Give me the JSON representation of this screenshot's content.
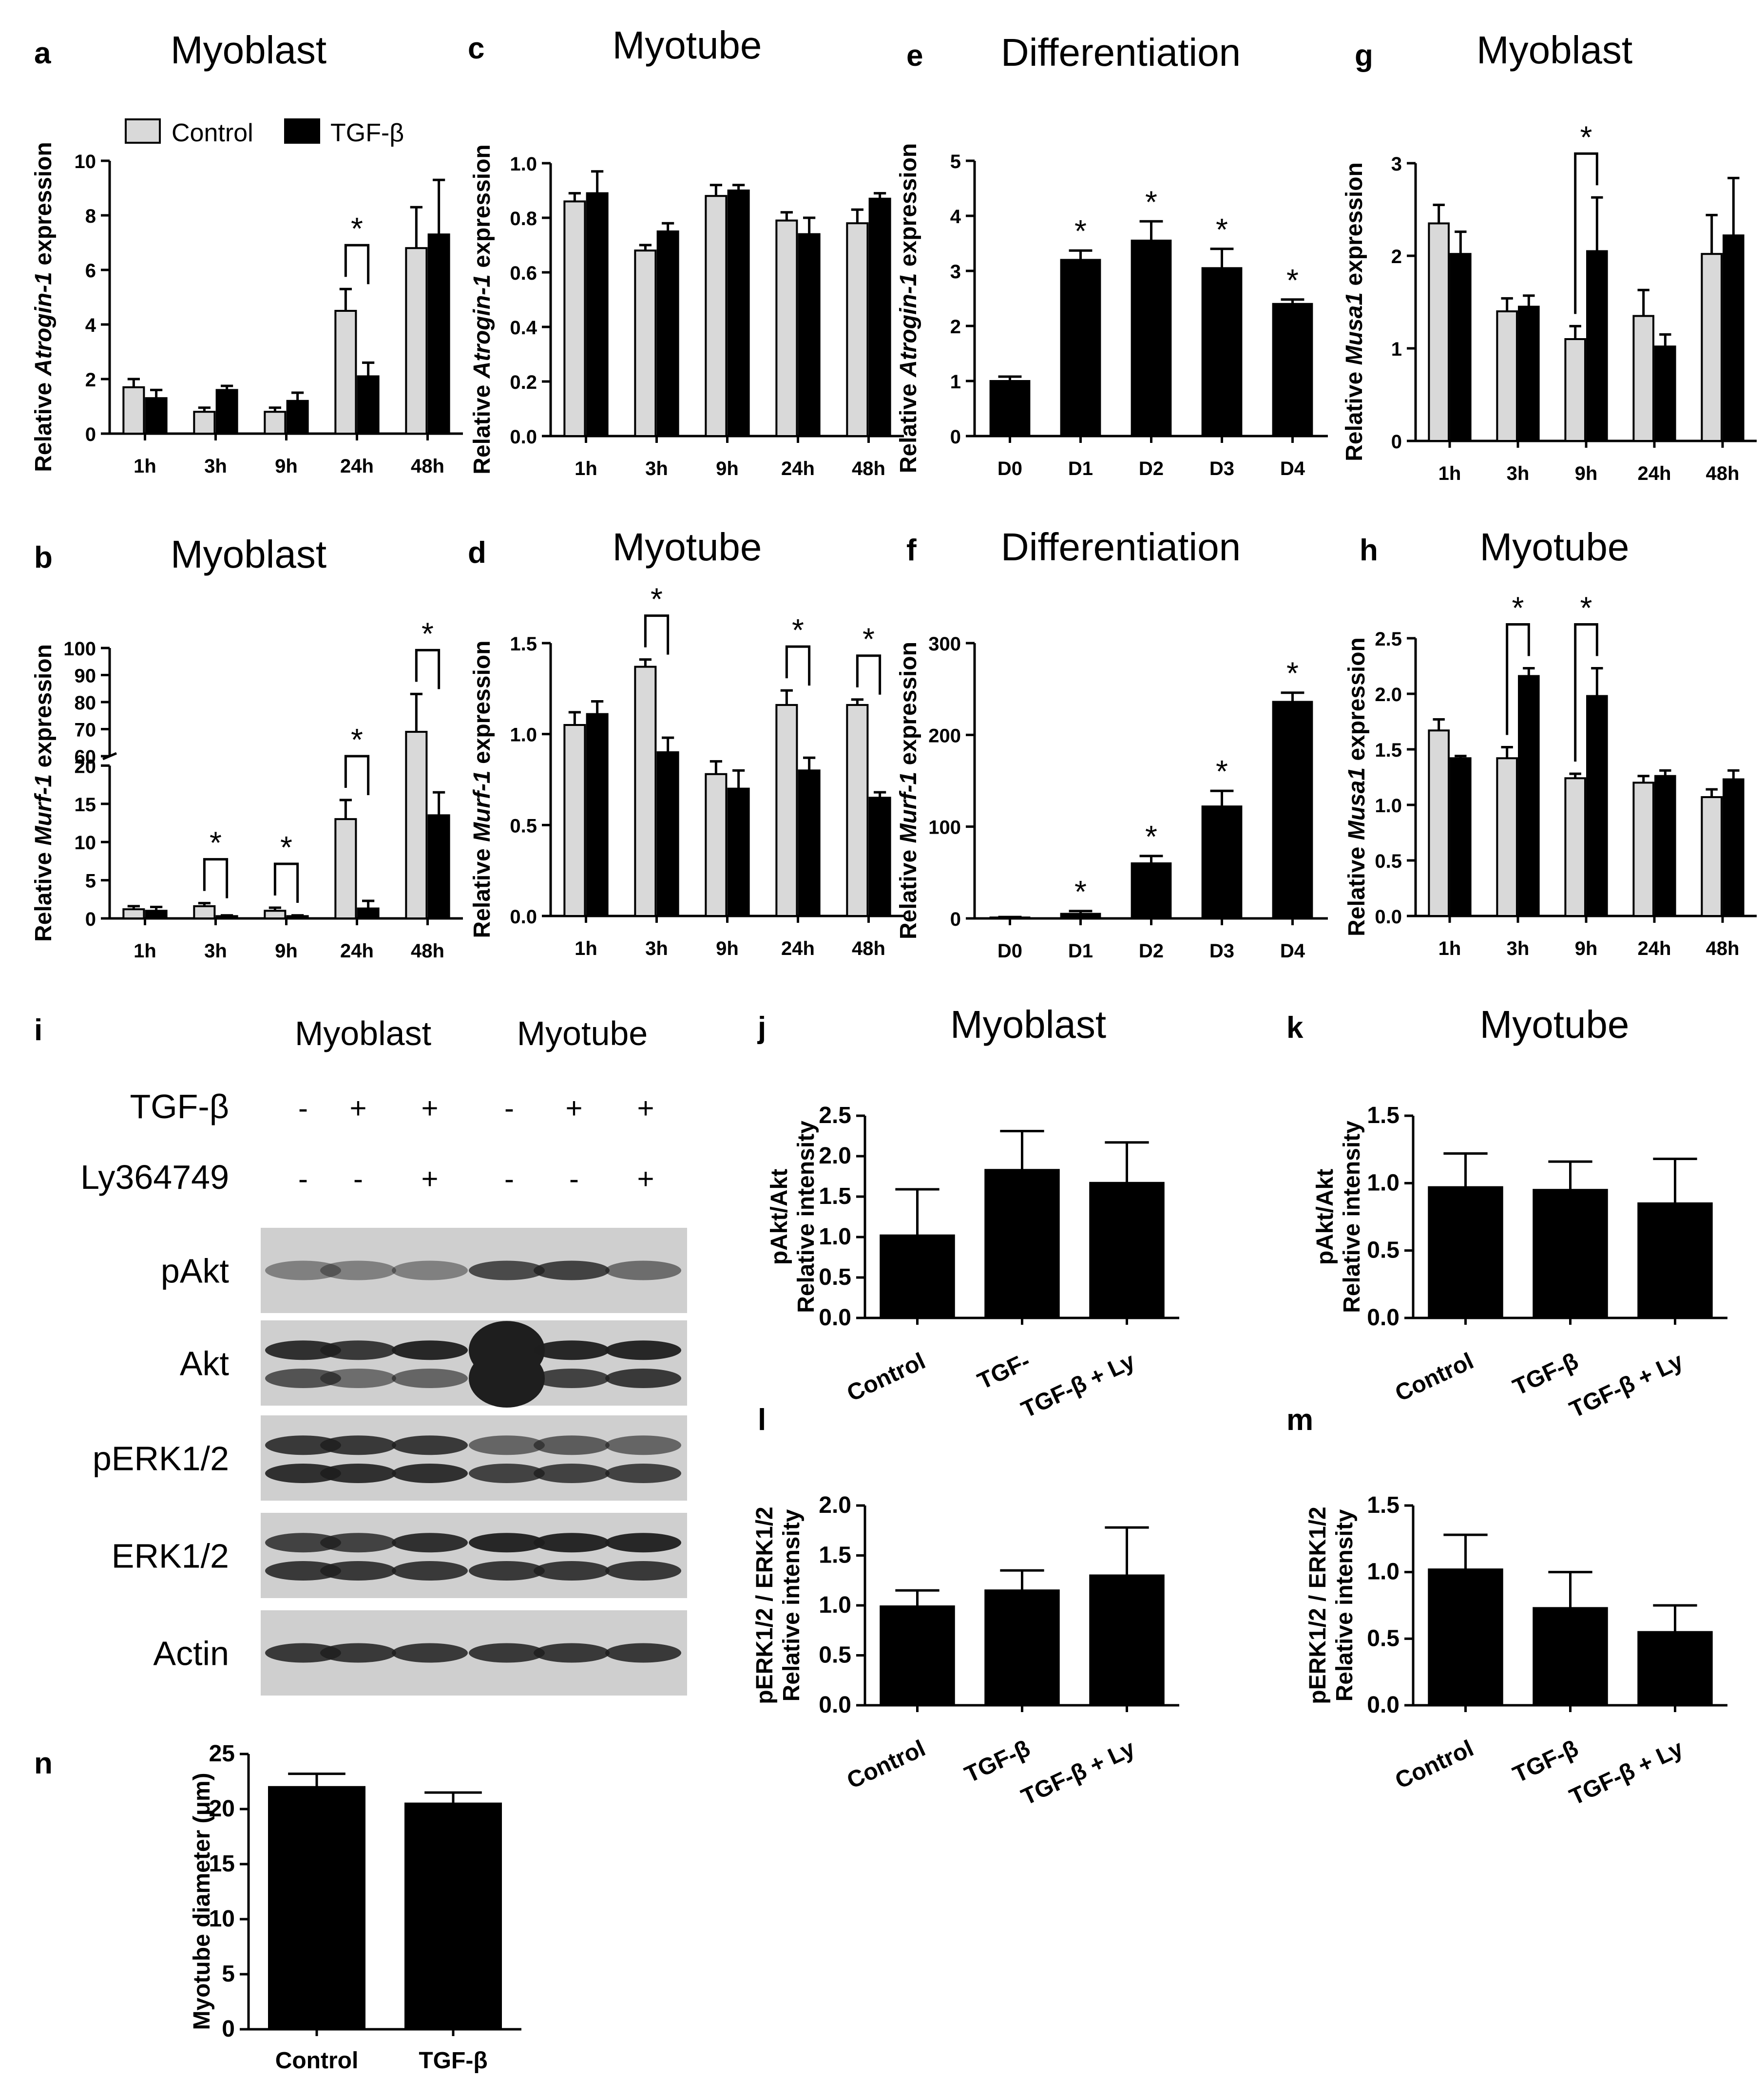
{
  "colors": {
    "control": "#d9d9d9",
    "treated": "#000000",
    "axis": "#000000",
    "blot_bg": "#cfcfcf",
    "band": "#1e1e1e"
  },
  "legend": {
    "control": "Control",
    "treated": "TGF-β"
  },
  "chart_data": [
    {
      "id": "a",
      "panel": "a",
      "type": "bar",
      "title": "Myoblast",
      "ylabel": "Relative Atrogin-1 expression",
      "ylabel_parts": [
        "Relative ",
        "Atrogin-1",
        " expression"
      ],
      "categories": [
        "1h",
        "3h",
        "9h",
        "24h",
        "48h"
      ],
      "ylim": [
        0,
        10
      ],
      "yticks": [
        0,
        2,
        4,
        6,
        8,
        10
      ],
      "series": [
        {
          "name": "Control",
          "values": [
            1.7,
            0.8,
            0.8,
            4.5,
            6.8
          ],
          "errors": [
            0.3,
            0.15,
            0.15,
            0.8,
            1.5
          ]
        },
        {
          "name": "TGF-β",
          "values": [
            1.3,
            1.6,
            1.2,
            2.1,
            7.3
          ],
          "errors": [
            0.3,
            0.15,
            0.3,
            0.5,
            2.0
          ]
        }
      ],
      "sig": [
        {
          "cat": 3,
          "label": "*"
        }
      ]
    },
    {
      "id": "b",
      "panel": "b",
      "type": "bar",
      "title": "Myoblast",
      "ylabel": "Relative Murf-1 expression",
      "ylabel_parts": [
        "Relative ",
        "Murf-1",
        " expression"
      ],
      "categories": [
        "1h",
        "3h",
        "9h",
        "24h",
        "48h"
      ],
      "ylim": [
        0,
        100
      ],
      "broken_axis": {
        "low": [
          0,
          20
        ],
        "high": [
          60,
          100
        ]
      },
      "yticks": [
        0,
        5,
        10,
        15,
        20,
        60,
        70,
        80,
        90,
        100
      ],
      "series": [
        {
          "name": "Control",
          "values": [
            1.2,
            1.6,
            1.0,
            13,
            69
          ],
          "errors": [
            0.4,
            0.4,
            0.4,
            2.5,
            14
          ]
        },
        {
          "name": "TGF-β",
          "values": [
            1.0,
            0.3,
            0.3,
            1.3,
            13.5
          ],
          "errors": [
            0.5,
            0.1,
            0.1,
            1.0,
            3
          ]
        }
      ],
      "sig": [
        {
          "cat": 1,
          "label": "*"
        },
        {
          "cat": 2,
          "label": "*"
        },
        {
          "cat": 3,
          "label": "*"
        },
        {
          "cat": 4,
          "label": "*"
        }
      ]
    },
    {
      "id": "c",
      "panel": "c",
      "type": "bar",
      "title": "Myotube",
      "ylabel": "Relative Atrogin-1 expression",
      "ylabel_parts": [
        "Relative ",
        "Atrogin-1",
        " expression"
      ],
      "categories": [
        "1h",
        "3h",
        "9h",
        "24h",
        "48h"
      ],
      "ylim": [
        0,
        1.0
      ],
      "yticks": [
        0.0,
        0.2,
        0.4,
        0.6,
        0.8,
        1.0
      ],
      "series": [
        {
          "name": "Control",
          "values": [
            0.86,
            0.68,
            0.88,
            0.79,
            0.78
          ],
          "errors": [
            0.03,
            0.02,
            0.04,
            0.03,
            0.05
          ]
        },
        {
          "name": "TGF-β",
          "values": [
            0.89,
            0.75,
            0.9,
            0.74,
            0.87
          ],
          "errors": [
            0.08,
            0.03,
            0.02,
            0.06,
            0.02
          ]
        }
      ],
      "sig": []
    },
    {
      "id": "d",
      "panel": "d",
      "type": "bar",
      "title": "Myotube",
      "ylabel": "Relative Murf-1 expression",
      "ylabel_parts": [
        "Relative ",
        "Murf-1",
        " expression"
      ],
      "categories": [
        "1h",
        "3h",
        "9h",
        "24h",
        "48h"
      ],
      "ylim": [
        0,
        1.5
      ],
      "yticks": [
        0.0,
        0.5,
        1.0,
        1.5
      ],
      "series": [
        {
          "name": "Control",
          "values": [
            1.05,
            1.37,
            0.78,
            1.16,
            1.16
          ],
          "errors": [
            0.07,
            0.04,
            0.07,
            0.08,
            0.03
          ]
        },
        {
          "name": "TGF-β",
          "values": [
            1.11,
            0.9,
            0.7,
            0.8,
            0.65
          ],
          "errors": [
            0.07,
            0.08,
            0.1,
            0.07,
            0.03
          ]
        }
      ],
      "sig": [
        {
          "cat": 1,
          "label": "*"
        },
        {
          "cat": 3,
          "label": "*"
        },
        {
          "cat": 4,
          "label": "*"
        }
      ]
    },
    {
      "id": "e",
      "panel": "e",
      "type": "bar",
      "title": "Differentiation",
      "ylabel": "Relative Atrogin-1 expression",
      "ylabel_parts": [
        "Relative ",
        "Atrogin-1",
        " expression"
      ],
      "categories": [
        "D0",
        "D1",
        "D2",
        "D3",
        "D4"
      ],
      "ylim": [
        0,
        5
      ],
      "yticks": [
        0,
        1,
        2,
        3,
        4,
        5
      ],
      "series": [
        {
          "name": "Differentiation",
          "values": [
            1.0,
            3.2,
            3.55,
            3.05,
            2.4
          ],
          "errors": [
            0.08,
            0.17,
            0.35,
            0.35,
            0.08
          ]
        }
      ],
      "sig": [
        {
          "cat": 1,
          "label": "*"
        },
        {
          "cat": 2,
          "label": "*"
        },
        {
          "cat": 3,
          "label": "*"
        },
        {
          "cat": 4,
          "label": "*"
        }
      ]
    },
    {
      "id": "f",
      "panel": "f",
      "type": "bar",
      "title": "Differentiation",
      "ylabel": "Relative Murf-1 expression",
      "ylabel_parts": [
        "Relative ",
        "Murf-1",
        " expression"
      ],
      "categories": [
        "D0",
        "D1",
        "D2",
        "D3",
        "D4"
      ],
      "ylim": [
        0,
        300
      ],
      "yticks": [
        0,
        100,
        200,
        300
      ],
      "series": [
        {
          "name": "Differentiation",
          "values": [
            1,
            5,
            60,
            122,
            236
          ],
          "errors": [
            0.5,
            3,
            8,
            17,
            10
          ]
        }
      ],
      "sig": [
        {
          "cat": 1,
          "label": "*"
        },
        {
          "cat": 2,
          "label": "*"
        },
        {
          "cat": 3,
          "label": "*"
        },
        {
          "cat": 4,
          "label": "*"
        }
      ]
    },
    {
      "id": "g",
      "panel": "g",
      "type": "bar",
      "title": "Myoblast",
      "ylabel": "Relative Musa1 expression",
      "ylabel_parts": [
        "Relative ",
        "Musa1",
        " expression"
      ],
      "categories": [
        "1h",
        "3h",
        "9h",
        "24h",
        "48h"
      ],
      "ylim": [
        0,
        3
      ],
      "yticks": [
        0,
        1,
        2,
        3
      ],
      "series": [
        {
          "name": "Control",
          "values": [
            2.35,
            1.4,
            1.1,
            1.35,
            2.02
          ],
          "errors": [
            0.2,
            0.14,
            0.14,
            0.28,
            0.42
          ]
        },
        {
          "name": "TGF-β",
          "values": [
            2.02,
            1.45,
            2.05,
            1.02,
            2.22
          ],
          "errors": [
            0.24,
            0.12,
            0.58,
            0.13,
            0.62
          ]
        }
      ],
      "sig": [
        {
          "cat": 2,
          "label": "*"
        }
      ]
    },
    {
      "id": "h",
      "panel": "h",
      "type": "bar",
      "title": "Myotube",
      "ylabel": "Relative Musa1 expression",
      "ylabel_parts": [
        "Relative ",
        "Musa1",
        " expression"
      ],
      "categories": [
        "1h",
        "3h",
        "9h",
        "24h",
        "48h"
      ],
      "ylim": [
        0,
        2.5
      ],
      "yticks": [
        0.0,
        0.5,
        1.0,
        1.5,
        2.0,
        2.5
      ],
      "series": [
        {
          "name": "Control",
          "values": [
            1.67,
            1.42,
            1.24,
            1.2,
            1.07
          ],
          "errors": [
            0.1,
            0.1,
            0.04,
            0.06,
            0.07
          ]
        },
        {
          "name": "TGF-β",
          "values": [
            1.42,
            2.16,
            1.98,
            1.26,
            1.23
          ],
          "errors": [
            0.02,
            0.07,
            0.25,
            0.05,
            0.08
          ]
        }
      ],
      "sig": [
        {
          "cat": 1,
          "label": "*"
        },
        {
          "cat": 2,
          "label": "*"
        }
      ]
    },
    {
      "id": "j",
      "panel": "j",
      "type": "bar",
      "title": "Myoblast",
      "ylabel_lines": [
        "pAkt/Akt",
        "Relative intensity"
      ],
      "categories": [
        "Control",
        "TGF-",
        "TGF-β + Ly"
      ],
      "ylim": [
        0,
        2.5
      ],
      "yticks": [
        0.0,
        0.5,
        1.0,
        1.5,
        2.0,
        2.5
      ],
      "series": [
        {
          "name": "Relative intensity",
          "values": [
            1.02,
            1.83,
            1.67
          ],
          "errors": [
            0.57,
            0.48,
            0.5
          ]
        }
      ],
      "sig": []
    },
    {
      "id": "k",
      "panel": "k",
      "type": "bar",
      "title": "Myotube",
      "ylabel_lines": [
        "pAkt/Akt",
        "Relative intensity"
      ],
      "categories": [
        "Control",
        "TGF-β",
        "TGF-β + Ly"
      ],
      "ylim": [
        0,
        1.5
      ],
      "yticks": [
        0.0,
        0.5,
        1.0,
        1.5
      ],
      "series": [
        {
          "name": "Relative intensity",
          "values": [
            0.97,
            0.95,
            0.85
          ],
          "errors": [
            0.25,
            0.21,
            0.33
          ]
        }
      ],
      "sig": []
    },
    {
      "id": "l",
      "panel": "l",
      "type": "bar",
      "title": "",
      "ylabel_lines": [
        "pERK1/2 / ERK1/2",
        "Relative intensity"
      ],
      "categories": [
        "Control",
        "TGF-β",
        "TGF-β + Ly"
      ],
      "ylim": [
        0,
        2.0
      ],
      "yticks": [
        0.0,
        0.5,
        1.0,
        1.5,
        2.0
      ],
      "series": [
        {
          "name": "Relative intensity",
          "values": [
            0.99,
            1.15,
            1.3
          ],
          "errors": [
            0.16,
            0.2,
            0.48
          ]
        }
      ],
      "sig": []
    },
    {
      "id": "m",
      "panel": "m",
      "type": "bar",
      "title": "",
      "ylabel_lines": [
        "pERK1/2 / ERK1/2",
        "Relative intensity"
      ],
      "categories": [
        "Control",
        "TGF-β",
        "TGF-β + Ly"
      ],
      "ylim": [
        0,
        1.5
      ],
      "yticks": [
        0.0,
        0.5,
        1.0,
        1.5
      ],
      "series": [
        {
          "name": "Relative intensity",
          "values": [
            1.02,
            0.73,
            0.55
          ],
          "errors": [
            0.26,
            0.27,
            0.2
          ]
        }
      ],
      "sig": []
    },
    {
      "id": "n",
      "panel": "n",
      "type": "bar",
      "title": "",
      "ylabel": "Myotube diameter (μm)",
      "categories": [
        "Control",
        "TGF-β"
      ],
      "ylim": [
        0,
        25
      ],
      "yticks": [
        0,
        5,
        10,
        15,
        20,
        25
      ],
      "series": [
        {
          "name": "Myotube diameter",
          "values": [
            22,
            20.5
          ],
          "errors": [
            1.2,
            1.0
          ]
        }
      ],
      "sig": []
    }
  ],
  "western": {
    "panel": "i",
    "groups": [
      "Myoblast",
      "Myotube"
    ],
    "rows": [
      {
        "label": "TGF-β",
        "signs": [
          "-",
          "+",
          "+",
          "-",
          "+",
          "+"
        ]
      },
      {
        "label": "Ly364749",
        "signs": [
          "-",
          "-",
          "+",
          "-",
          "-",
          "+"
        ]
      }
    ],
    "blots": [
      "pAkt",
      "Akt",
      "pERK1/2",
      "ERK1/2",
      "Actin"
    ]
  }
}
